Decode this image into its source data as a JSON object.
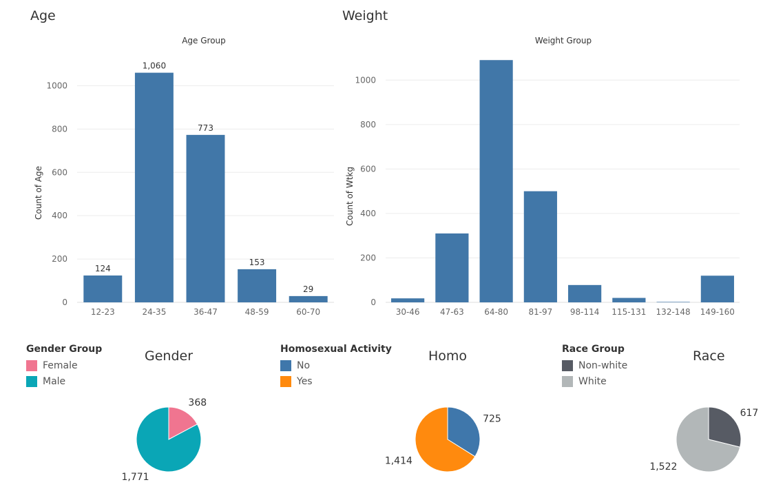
{
  "sheets": {
    "age_title": "Age",
    "weight_title": "Weight"
  },
  "chart_data": [
    {
      "id": "age",
      "type": "bar",
      "title": "Age Group",
      "ylabel": "Count of Age",
      "xlabel": "",
      "categories": [
        "12-23",
        "24-35",
        "36-47",
        "48-59",
        "60-70"
      ],
      "values": [
        124,
        1060,
        773,
        153,
        29
      ],
      "data_labels": [
        "124",
        "1,060",
        "773",
        "153",
        "29"
      ],
      "yticks": [
        0,
        200,
        400,
        600,
        800,
        1000
      ],
      "ylim": [
        0,
        1100
      ],
      "grid": true,
      "color": "#4177a8"
    },
    {
      "id": "weight",
      "type": "bar",
      "title": "Weight Group",
      "ylabel": "Count of Wtkg",
      "xlabel": "",
      "categories": [
        "30-46",
        "47-63",
        "64-80",
        "81-97",
        "98-114",
        "115-131",
        "132-148",
        "149-160"
      ],
      "values": [
        18,
        310,
        1090,
        500,
        78,
        20,
        2,
        120
      ],
      "data_labels": [],
      "yticks": [
        0,
        200,
        400,
        600,
        800,
        1000
      ],
      "ylim": [
        0,
        1100
      ],
      "grid": true,
      "color": "#4177a8"
    },
    {
      "id": "gender",
      "type": "pie",
      "title": "Gender",
      "legend_title": "Gender Group",
      "slices": [
        {
          "label": "Female",
          "value": 368,
          "value_label": "368",
          "color": "#f07590"
        },
        {
          "label": "Male",
          "value": 1771,
          "value_label": "1,771",
          "color": "#0aa6b6"
        }
      ]
    },
    {
      "id": "homo",
      "type": "pie",
      "title": "Homo",
      "legend_title": "Homosexual Activity",
      "slices": [
        {
          "label": "No",
          "value": 725,
          "value_label": "725",
          "color": "#3f77ab"
        },
        {
          "label": "Yes",
          "value": 1414,
          "value_label": "1,414",
          "color": "#ff8a0e"
        }
      ]
    },
    {
      "id": "race",
      "type": "pie",
      "title": "Race",
      "legend_title": "Race Group",
      "slices": [
        {
          "label": "Non-white",
          "value": 617,
          "value_label": "617",
          "color": "#575b64"
        },
        {
          "label": "White",
          "value": 1522,
          "value_label": "1,522",
          "color": "#b2b7b8"
        }
      ]
    }
  ]
}
